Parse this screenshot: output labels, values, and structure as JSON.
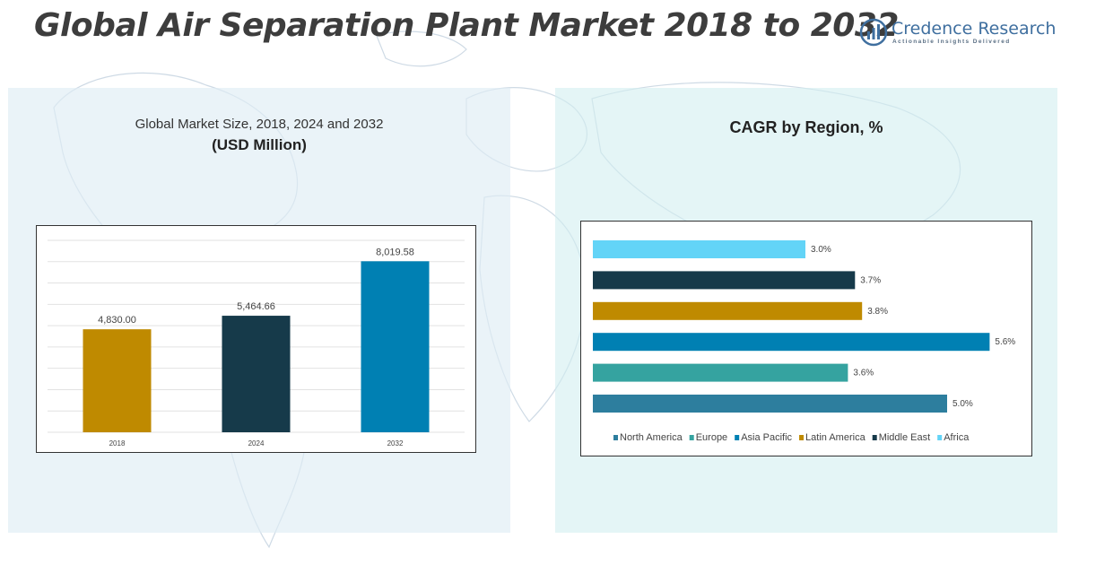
{
  "title": "Global Air Separation Plant Market 2018 to 2032",
  "logo": {
    "name": "Credence Research",
    "tagline": "Actionable Insights Delivered",
    "icon": "bar-chart-logo-icon"
  },
  "left_panel": {
    "title": "Global Market Size, 2018, 2024 and 2032",
    "subtitle": "(USD Million)"
  },
  "right_panel": {
    "title": "CAGR by Region, %"
  },
  "chart_data": [
    {
      "type": "bar",
      "title": "Global Market Size, 2018, 2024 and 2032",
      "subtitle": "(USD Million)",
      "categories": [
        "2018",
        "2024",
        "2032"
      ],
      "values": [
        4830.0,
        5464.66,
        8019.58
      ],
      "value_labels": [
        "4,830.00",
        "5,464.66",
        "8,019.58"
      ],
      "colors": [
        "#bf8a00",
        "#163a4a",
        "#0080b3"
      ],
      "ylim": [
        0,
        9000
      ],
      "grid": true,
      "legend": "none"
    },
    {
      "type": "bar",
      "orientation": "horizontal",
      "title": "CAGR by Region, %",
      "series": [
        {
          "name": "North America",
          "value": 5.0,
          "label": "5.0%",
          "color": "#2d7e9e"
        },
        {
          "name": "Europe",
          "value": 3.6,
          "label": "3.6%",
          "color": "#35a3a0"
        },
        {
          "name": "Asia Pacific",
          "value": 5.6,
          "label": "5.6%",
          "color": "#0080b3"
        },
        {
          "name": "Latin America",
          "value": 3.8,
          "label": "3.8%",
          "color": "#bf8a00"
        },
        {
          "name": "Middle East",
          "value": 3.7,
          "label": "3.7%",
          "color": "#163a4a"
        },
        {
          "name": "Africa",
          "value": 3.0,
          "label": "3.0%",
          "color": "#63d4f7"
        }
      ],
      "xlim": [
        0,
        6
      ],
      "grid": false,
      "legend": "bottom"
    }
  ]
}
